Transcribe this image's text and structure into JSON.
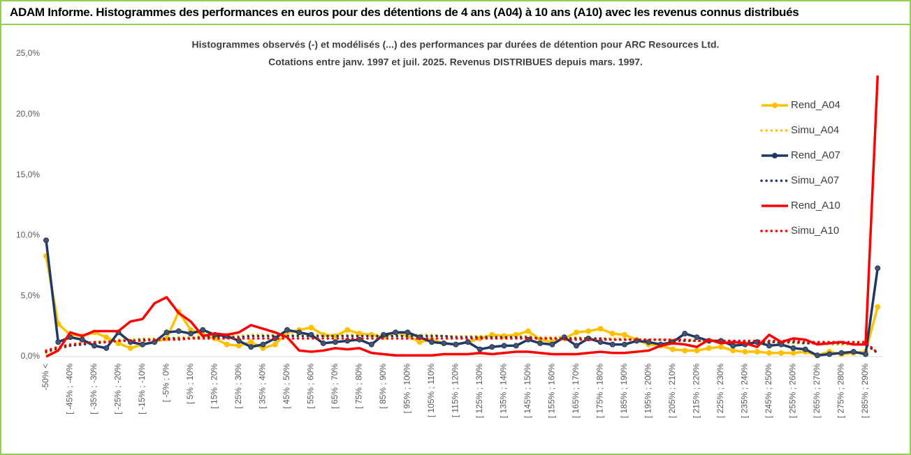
{
  "header": {
    "title": "ADAM Informe. Histogrammes des performances en euros pour des détentions de 4 ans (A04) à 10 ans (A10) avec les revenus connus distribués"
  },
  "chart_data": {
    "type": "line",
    "title": "Histogrammes observés (-) et modélisés (...) des performances par durées de détention pour ARC Resources Ltd.",
    "subtitle": "Cotations entre janv. 1997 et juil. 2025. Revenus DISTRIBUES depuis mars. 1997.",
    "categories": [
      "-50% <",
      null,
      "[ -45% ; -40%",
      null,
      "[ -35% ; -30%",
      null,
      "[ -25% ; -20%",
      null,
      "[ -15% ; -10%",
      null,
      "[ -5% ; 0%",
      null,
      "[ 5% ; 10%",
      null,
      "[ 15% ; 20%",
      null,
      "[ 25% ; 30%",
      null,
      "[ 35% ; 40%",
      null,
      "[ 45% ; 50%",
      null,
      "[ 55% ; 60%",
      null,
      "[ 65% ; 70%",
      null,
      "[ 75% ; 80%",
      null,
      "[ 85% ; 90%",
      null,
      "[ 95% ; 100%",
      null,
      "[ 105% ; 110%",
      null,
      "[ 115% ; 120%",
      null,
      "[ 125% ; 130%",
      null,
      "[ 135% ; 140%",
      null,
      "[ 145% ; 150%",
      null,
      "[ 155% ; 160%",
      null,
      "[ 165% ; 170%",
      null,
      "[ 175% ; 180%",
      null,
      "[ 185% ; 190%",
      null,
      "[ 195% ; 200%",
      null,
      "[ 205% ; 210%",
      null,
      "[ 215% ; 220%",
      null,
      "[ 225% ; 230%",
      null,
      "[ 235% ; 240%",
      null,
      "[ 245% ; 250%",
      null,
      "[ 255% ; 260%",
      null,
      "[ 265% ; 270%",
      null,
      "[ 275% ; 280%",
      null,
      "[ 285% ; 290%",
      null
    ],
    "series": [
      {
        "name": "Rend_A04",
        "color": "#ffc000",
        "style": "solid",
        "marker": true,
        "values": [
          8.3,
          2.7,
          1.8,
          1.7,
          2.0,
          1.6,
          1.1,
          0.7,
          1.0,
          1.2,
          1.5,
          3.7,
          2.2,
          1.8,
          1.5,
          1.0,
          0.9,
          1.2,
          0.7,
          1.0,
          2.0,
          2.2,
          2.4,
          1.8,
          1.7,
          2.2,
          1.9,
          1.8,
          1.6,
          2.0,
          1.7,
          1.2,
          1.4,
          1.1,
          1.0,
          1.2,
          1.5,
          1.8,
          1.7,
          1.8,
          2.1,
          1.4,
          1.2,
          1.5,
          2.0,
          2.1,
          2.3,
          1.9,
          1.8,
          1.4,
          1.0,
          0.9,
          0.6,
          0.5,
          0.5,
          0.7,
          0.8,
          0.5,
          0.4,
          0.4,
          0.3,
          0.3,
          0.3,
          0.4,
          0.1,
          0.4,
          0.2,
          0.3,
          0.4,
          4.1
        ]
      },
      {
        "name": "Simu_A04",
        "color": "#ffc000",
        "style": "dotted",
        "marker": false,
        "values": [
          0.3,
          0.6,
          0.9,
          1.1,
          1.2,
          1.3,
          1.4,
          1.4,
          1.5,
          1.5,
          1.5,
          1.6,
          1.6,
          1.7,
          1.7,
          1.7,
          1.7,
          1.8,
          1.8,
          1.8,
          1.8,
          1.8,
          1.8,
          1.8,
          1.8,
          1.8,
          1.8,
          1.8,
          1.8,
          1.8,
          1.8,
          1.8,
          1.8,
          1.7,
          1.7,
          1.7,
          1.7,
          1.7,
          1.7,
          1.7,
          1.7,
          1.6,
          1.6,
          1.6,
          1.6,
          1.5,
          1.5,
          1.5,
          1.5,
          1.4,
          1.4,
          1.4,
          1.4,
          1.3,
          1.3,
          1.3,
          1.3,
          1.2,
          1.2,
          1.2,
          1.2,
          1.1,
          1.1,
          1.1,
          1.1,
          1.0,
          1.0,
          1.0,
          1.0,
          0.3
        ]
      },
      {
        "name": "Rend_A07",
        "color": "#1f3864",
        "style": "solid",
        "marker": true,
        "values": [
          9.6,
          1.2,
          1.6,
          1.4,
          0.9,
          0.7,
          2.0,
          1.2,
          1.0,
          1.2,
          2.0,
          2.1,
          1.9,
          2.2,
          1.8,
          1.7,
          1.3,
          0.8,
          1.0,
          1.5,
          2.2,
          2.0,
          1.8,
          1.1,
          1.2,
          1.3,
          1.4,
          1.0,
          1.8,
          2.0,
          2.0,
          1.6,
          1.2,
          1.1,
          1.0,
          1.2,
          0.6,
          0.8,
          0.9,
          0.9,
          1.4,
          1.1,
          1.0,
          1.6,
          0.9,
          1.5,
          1.2,
          1.0,
          1.0,
          1.3,
          1.2,
          1.0,
          1.2,
          1.9,
          1.6,
          1.3,
          1.3,
          0.9,
          1.0,
          1.2,
          0.9,
          1.0,
          0.7,
          0.6,
          0.1,
          0.2,
          0.3,
          0.4,
          0.2,
          7.3
        ]
      },
      {
        "name": "Simu_A07",
        "color": "#1f3864",
        "style": "dotted",
        "marker": false,
        "values": [
          0.4,
          0.7,
          0.9,
          1.0,
          1.1,
          1.2,
          1.3,
          1.3,
          1.4,
          1.4,
          1.5,
          1.5,
          1.5,
          1.6,
          1.6,
          1.6,
          1.6,
          1.7,
          1.7,
          1.7,
          1.7,
          1.7,
          1.7,
          1.7,
          1.7,
          1.7,
          1.7,
          1.7,
          1.7,
          1.7,
          1.7,
          1.7,
          1.7,
          1.7,
          1.6,
          1.6,
          1.6,
          1.6,
          1.6,
          1.6,
          1.6,
          1.5,
          1.5,
          1.5,
          1.5,
          1.5,
          1.5,
          1.4,
          1.4,
          1.4,
          1.4,
          1.4,
          1.3,
          1.3,
          1.3,
          1.3,
          1.3,
          1.3,
          1.2,
          1.2,
          1.2,
          1.2,
          1.2,
          1.1,
          1.1,
          1.1,
          1.1,
          1.1,
          1.0,
          0.3
        ]
      },
      {
        "name": "Rend_A10",
        "color": "#ff0000",
        "style": "solid",
        "marker": false,
        "values": [
          0.0,
          0.5,
          2.0,
          1.7,
          2.1,
          2.1,
          2.1,
          2.9,
          3.1,
          4.4,
          4.9,
          3.6,
          2.9,
          1.7,
          1.9,
          1.8,
          2.0,
          2.6,
          2.3,
          2.0,
          1.6,
          0.5,
          0.4,
          0.5,
          0.7,
          0.6,
          0.7,
          0.3,
          0.2,
          0.1,
          0.1,
          0.1,
          0.1,
          0.2,
          0.2,
          0.2,
          0.3,
          0.2,
          0.3,
          0.4,
          0.4,
          0.3,
          0.2,
          0.2,
          0.2,
          0.3,
          0.4,
          0.3,
          0.3,
          0.4,
          0.5,
          0.9,
          1.1,
          1.0,
          0.8,
          1.4,
          1.1,
          1.2,
          1.1,
          0.8,
          1.8,
          1.2,
          1.5,
          1.4,
          1.0,
          1.1,
          1.2,
          1.0,
          1.0,
          23.2
        ]
      },
      {
        "name": "Simu_A10",
        "color": "#ff0000",
        "style": "dotted",
        "marker": false,
        "values": [
          0.5,
          0.8,
          1.0,
          1.1,
          1.2,
          1.2,
          1.3,
          1.3,
          1.3,
          1.4,
          1.4,
          1.4,
          1.5,
          1.5,
          1.5,
          1.5,
          1.5,
          1.5,
          1.5,
          1.5,
          1.5,
          1.5,
          1.5,
          1.5,
          1.5,
          1.5,
          1.5,
          1.5,
          1.5,
          1.5,
          1.5,
          1.5,
          1.5,
          1.5,
          1.5,
          1.5,
          1.5,
          1.5,
          1.5,
          1.5,
          1.5,
          1.5,
          1.5,
          1.4,
          1.4,
          1.4,
          1.4,
          1.4,
          1.4,
          1.4,
          1.4,
          1.4,
          1.4,
          1.4,
          1.3,
          1.3,
          1.3,
          1.3,
          1.3,
          1.3,
          1.3,
          1.3,
          1.3,
          1.2,
          1.2,
          1.2,
          1.2,
          1.2,
          1.2,
          0.3
        ]
      }
    ],
    "ylim": [
      0,
      25
    ],
    "yticks": [
      {
        "value": 0,
        "label": "0,0%"
      },
      {
        "value": 5,
        "label": "5,0%"
      },
      {
        "value": 10,
        "label": "10,0%"
      },
      {
        "value": 15,
        "label": "15,0%"
      },
      {
        "value": 20,
        "label": "20,0%"
      },
      {
        "value": 25,
        "label": "25,0%"
      }
    ],
    "grid": false,
    "legend": "top-right"
  }
}
